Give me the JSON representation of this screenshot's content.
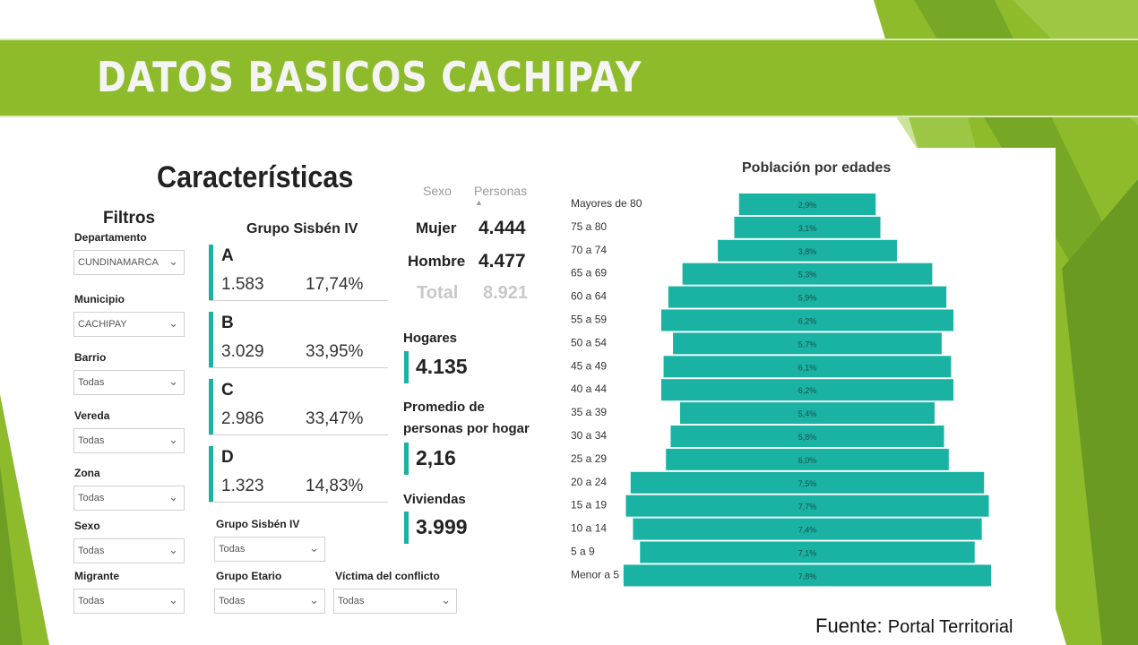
{
  "slide": {
    "title": "DATOS BASICOS CACHIPAY",
    "source_label": "Fuente:",
    "source_text": "Portal Territorial"
  },
  "colors": {
    "banner": "#8dbb2b",
    "accent_teal": "#1ab2a3",
    "deco_green": "#7fb528"
  },
  "dashboard": {
    "title": "Características",
    "filters": {
      "heading": "Filtros",
      "items": [
        {
          "label": "Departamento",
          "value": "CUNDINAMARCA"
        },
        {
          "label": "Municipio",
          "value": "CACHIPAY"
        },
        {
          "label": "Barrio",
          "value": "Todas"
        },
        {
          "label": "Vereda",
          "value": "Todas"
        },
        {
          "label": "Zona",
          "value": "Todas"
        },
        {
          "label": "Sexo",
          "value": "Todas"
        },
        {
          "label": "Migrante",
          "value": "Todas"
        }
      ],
      "extra": [
        {
          "label": "Grupo Sisbén IV",
          "value": "Todas"
        },
        {
          "label": "Grupo Etario",
          "value": "Todas"
        },
        {
          "label": "Víctima del conflicto",
          "value": "Todas"
        }
      ]
    },
    "sisben": {
      "heading": "Grupo Sisbén IV",
      "groups": [
        {
          "letter": "A",
          "count": "1.583",
          "pct": "17,74%"
        },
        {
          "letter": "B",
          "count": "3.029",
          "pct": "33,95%"
        },
        {
          "letter": "C",
          "count": "2.986",
          "pct": "33,47%"
        },
        {
          "letter": "D",
          "count": "1.323",
          "pct": "14,83%"
        }
      ]
    },
    "sex_table": {
      "col_sexo": "Sexo",
      "col_personas": "Personas",
      "sort_icon": "triangle-up-icon",
      "rows": [
        {
          "label": "Mujer",
          "value": "4.444"
        },
        {
          "label": "Hombre",
          "value": "4.477"
        }
      ],
      "total_label": "Total",
      "total_value": "8.921"
    },
    "kpis": {
      "hogares_label": "Hogares",
      "hogares_value": "4.135",
      "promedio_label_1": "Promedio de",
      "promedio_label_2": "personas por hogar",
      "promedio_value": "2,16",
      "viviendas_label": "Viviendas",
      "viviendas_value": "3.999"
    }
  },
  "chart_data": {
    "type": "bar",
    "orientation": "horizontal-centered",
    "title": "Población por edades",
    "categories": [
      "Mayores de 80",
      "75 a 80",
      "70 a 74",
      "65 a 69",
      "60 a 64",
      "55 a 59",
      "50 a 54",
      "45 a 49",
      "40 a 44",
      "35 a 39",
      "30 a 34",
      "25 a 29",
      "20 a 24",
      "15 a 19",
      "10 a 14",
      "5 a 9",
      "Menor a 5"
    ],
    "values": [
      2.9,
      3.1,
      3.8,
      5.3,
      5.9,
      6.2,
      5.7,
      6.1,
      6.2,
      5.4,
      5.8,
      6.0,
      7.5,
      7.7,
      7.4,
      7.1,
      7.8
    ],
    "labels": [
      "2,9%",
      "3,1%",
      "3,8%",
      "5,3%",
      "5,9%",
      "6,2%",
      "5,7%",
      "6,1%",
      "6,2%",
      "5,4%",
      "5,8%",
      "6,0%",
      "7,5%",
      "7,7%",
      "7,4%",
      "7,1%",
      "7,8%"
    ],
    "unit": "%"
  }
}
